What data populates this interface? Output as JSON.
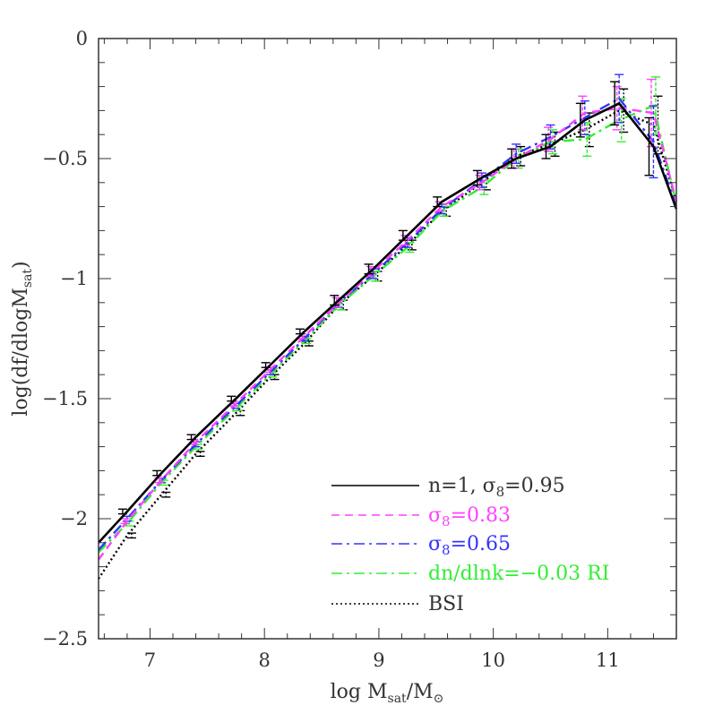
{
  "chart_data": {
    "type": "line",
    "xlabel": "log M",
    "xlabel_sub": "sat",
    "xlabel_suffix": "/M",
    "xlabel_sub2": "⊙",
    "ylabel": "log(df/dlogM",
    "ylabel_sub": "sat",
    "ylabel_suffix": ")",
    "xlim": [
      6.55,
      11.6
    ],
    "ylim": [
      -2.5,
      0
    ],
    "xticks": [
      7,
      8,
      9,
      10,
      11
    ],
    "xtick_labels": [
      "7",
      "8",
      "9",
      "10",
      "11"
    ],
    "yticks": [
      0,
      -0.5,
      -1,
      -1.5,
      -2,
      -2.5
    ],
    "ytick_labels": [
      "0",
      "−0.5",
      "−1",
      "−1.5",
      "−2",
      "−2.5"
    ],
    "grid": false,
    "legend_position": "bottom-right",
    "series": [
      {
        "name": "n=1,  σ8=0.95",
        "label_main": "n=1,  σ",
        "label_sub": "8",
        "label_tail": "=0.95",
        "color": "#000000",
        "style": "solid",
        "x": [
          6.55,
          6.8,
          7.1,
          7.4,
          7.75,
          8.05,
          8.35,
          8.65,
          8.95,
          9.25,
          9.55,
          9.9,
          10.2,
          10.5,
          10.8,
          11.1,
          11.4,
          11.6
        ],
        "y": [
          -2.1,
          -1.97,
          -1.81,
          -1.66,
          -1.5,
          -1.36,
          -1.22,
          -1.09,
          -0.96,
          -0.82,
          -0.68,
          -0.58,
          -0.5,
          -0.45,
          -0.34,
          -0.27,
          -0.45,
          -0.71
        ],
        "err": [
          0,
          0.01,
          0.01,
          0.01,
          0.01,
          0.01,
          0.01,
          0.02,
          0.02,
          0.02,
          0.02,
          0.03,
          0.04,
          0.05,
          0.07,
          0.09,
          0.12,
          0
        ]
      },
      {
        "name": "σ8=0.83",
        "label_main": "σ",
        "label_sub": "8",
        "label_tail": "=0.83",
        "color": "#ff40ff",
        "style": "dashed",
        "x": [
          6.55,
          6.8,
          7.1,
          7.4,
          7.75,
          8.05,
          8.35,
          8.65,
          8.95,
          9.25,
          9.55,
          9.9,
          10.2,
          10.5,
          10.8,
          11.1,
          11.4,
          11.6
        ],
        "y": [
          -2.17,
          -2.01,
          -1.84,
          -1.68,
          -1.52,
          -1.38,
          -1.24,
          -1.1,
          -0.97,
          -0.84,
          -0.7,
          -0.6,
          -0.5,
          -0.42,
          -0.31,
          -0.29,
          -0.31,
          -0.68
        ],
        "err": [
          0,
          0.01,
          0.01,
          0.01,
          0.01,
          0.01,
          0.01,
          0.02,
          0.02,
          0.02,
          0.02,
          0.03,
          0.04,
          0.05,
          0.07,
          0.09,
          0.14,
          0
        ]
      },
      {
        "name": "σ8=0.65",
        "label_main": "σ",
        "label_sub": "8",
        "label_tail": "=0.65",
        "color": "#3333ff",
        "style": "dashdot",
        "x": [
          6.55,
          6.8,
          7.1,
          7.4,
          7.75,
          8.05,
          8.35,
          8.65,
          8.95,
          9.25,
          9.55,
          9.9,
          10.2,
          10.5,
          10.8,
          11.1,
          11.4,
          11.6
        ],
        "y": [
          -2.13,
          -2.0,
          -1.84,
          -1.69,
          -1.53,
          -1.39,
          -1.25,
          -1.1,
          -0.98,
          -0.85,
          -0.71,
          -0.59,
          -0.48,
          -0.41,
          -0.33,
          -0.25,
          -0.43,
          -0.7
        ],
        "err": [
          0,
          0.01,
          0.01,
          0.01,
          0.01,
          0.01,
          0.01,
          0.02,
          0.02,
          0.02,
          0.02,
          0.03,
          0.04,
          0.05,
          0.07,
          0.1,
          0.15,
          0
        ]
      },
      {
        "name": "dn/dlnk=−0.03 RI",
        "label_main": "dn/dlnk=−0.03 RI",
        "label_sub": "",
        "label_tail": "",
        "color": "#33ee33",
        "style": "dashdot",
        "x": [
          6.55,
          6.8,
          7.1,
          7.4,
          7.75,
          8.05,
          8.35,
          8.65,
          8.95,
          9.25,
          9.55,
          9.9,
          10.2,
          10.5,
          10.8,
          11.1,
          11.4,
          11.6
        ],
        "y": [
          -2.14,
          -2.02,
          -1.85,
          -1.7,
          -1.54,
          -1.4,
          -1.26,
          -1.11,
          -0.99,
          -0.87,
          -0.72,
          -0.62,
          -0.5,
          -0.43,
          -0.42,
          -0.34,
          -0.28,
          -0.69
        ],
        "err": [
          0,
          0.01,
          0.01,
          0.01,
          0.01,
          0.01,
          0.01,
          0.02,
          0.02,
          0.02,
          0.02,
          0.03,
          0.04,
          0.05,
          0.07,
          0.09,
          0.12,
          0
        ]
      },
      {
        "name": "BSI",
        "label_main": "BSI",
        "label_sub": "",
        "label_tail": "",
        "color": "#000000",
        "style": "dotted",
        "x": [
          6.55,
          6.8,
          7.1,
          7.4,
          7.75,
          8.05,
          8.35,
          8.65,
          8.95,
          9.25,
          9.55,
          9.9,
          10.2,
          10.5,
          10.8,
          11.1,
          11.4,
          11.6
        ],
        "y": [
          -2.25,
          -2.07,
          -1.9,
          -1.73,
          -1.56,
          -1.41,
          -1.27,
          -1.11,
          -0.99,
          -0.86,
          -0.72,
          -0.6,
          -0.49,
          -0.44,
          -0.38,
          -0.3,
          -0.36,
          -0.68
        ],
        "err": [
          0,
          0.01,
          0.01,
          0.01,
          0.01,
          0.01,
          0.01,
          0.02,
          0.02,
          0.02,
          0.02,
          0.03,
          0.04,
          0.05,
          0.07,
          0.09,
          0.12,
          0
        ]
      }
    ]
  }
}
